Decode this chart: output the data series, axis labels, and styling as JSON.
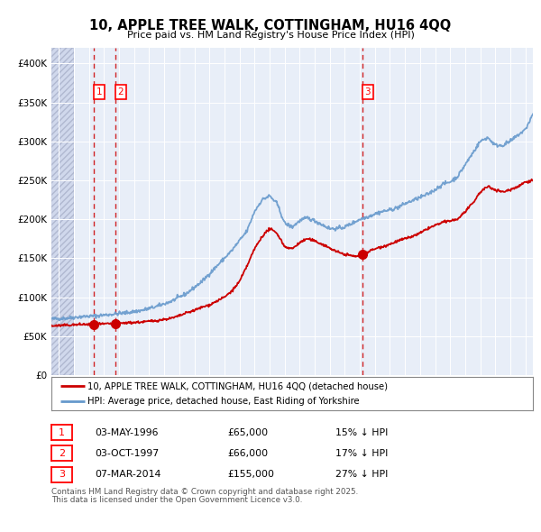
{
  "title": "10, APPLE TREE WALK, COTTINGHAM, HU16 4QQ",
  "subtitle": "Price paid vs. HM Land Registry's House Price Index (HPI)",
  "transactions": [
    {
      "num": 1,
      "date": "1996-05-03",
      "price": 65000,
      "pct": "15% ↓ HPI",
      "x_year": 1996.34
    },
    {
      "num": 2,
      "date": "1997-10-03",
      "price": 66000,
      "pct": "17% ↓ HPI",
      "x_year": 1997.75
    },
    {
      "num": 3,
      "date": "2014-03-07",
      "price": 155000,
      "pct": "27% ↓ HPI",
      "x_year": 2014.18
    }
  ],
  "table_entries": [
    {
      "num": "1",
      "date": "03-MAY-1996",
      "price": "£65,000",
      "pct": "15% ↓ HPI"
    },
    {
      "num": "2",
      "date": "03-OCT-1997",
      "price": "£66,000",
      "pct": "17% ↓ HPI"
    },
    {
      "num": "3",
      "date": "07-MAR-2014",
      "price": "£155,000",
      "pct": "27% ↓ HPI"
    }
  ],
  "legend_property": "10, APPLE TREE WALK, COTTINGHAM, HU16 4QQ (detached house)",
  "legend_hpi": "HPI: Average price, detached house, East Riding of Yorkshire",
  "footnote_line1": "Contains HM Land Registry data © Crown copyright and database right 2025.",
  "footnote_line2": "This data is licensed under the Open Government Licence v3.0.",
  "property_color": "#cc0000",
  "hpi_color": "#6699cc",
  "ylim": [
    0,
    420000
  ],
  "yticks": [
    0,
    50000,
    100000,
    150000,
    200000,
    250000,
    300000,
    350000,
    400000
  ],
  "xlim_start": 1993.5,
  "xlim_end": 2025.5,
  "background_color": "#e8eef8",
  "hatch_region_end": 1995.0,
  "grid_color": "#ffffff",
  "marker_prices": [
    65000,
    66000,
    155000
  ]
}
